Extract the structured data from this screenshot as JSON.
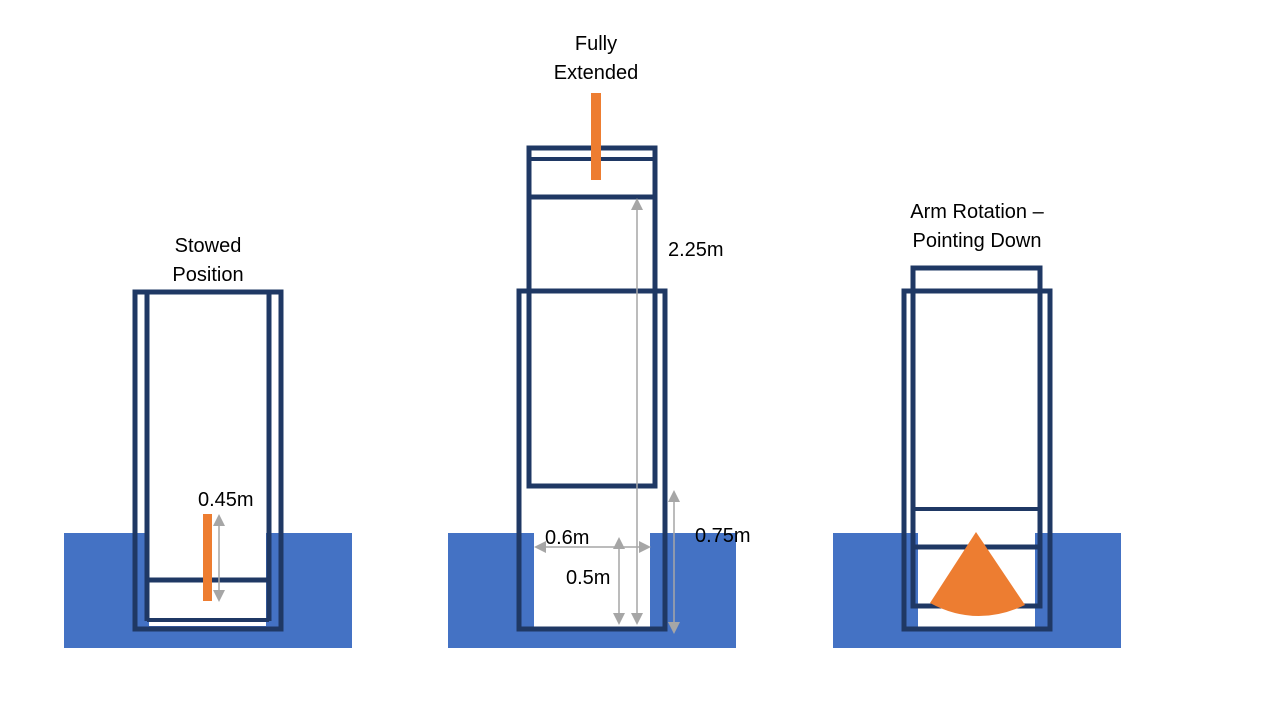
{
  "colors": {
    "water": "#4472c4",
    "frame": "#1f3864",
    "arm": "#ed7d31",
    "dimension": "#a6a6a6",
    "text": "#000000",
    "background": "#ffffff"
  },
  "panels": [
    {
      "id": "stowed",
      "title_lines": [
        "Stowed",
        "Position"
      ],
      "dimensions": [
        "0.45m"
      ]
    },
    {
      "id": "extended",
      "title_lines": [
        "Fully",
        "Extended"
      ],
      "dimensions": [
        "2.25m",
        "0.6m",
        "0.5m",
        "0.75m"
      ]
    },
    {
      "id": "rotation",
      "title_lines": [
        "Arm Rotation –",
        "Pointing Down"
      ],
      "dimensions": []
    }
  ],
  "arm_shapes": {
    "stowed": "vertical-bar",
    "extended": "vertical-bar",
    "rotation": "downward-fan-sector"
  }
}
